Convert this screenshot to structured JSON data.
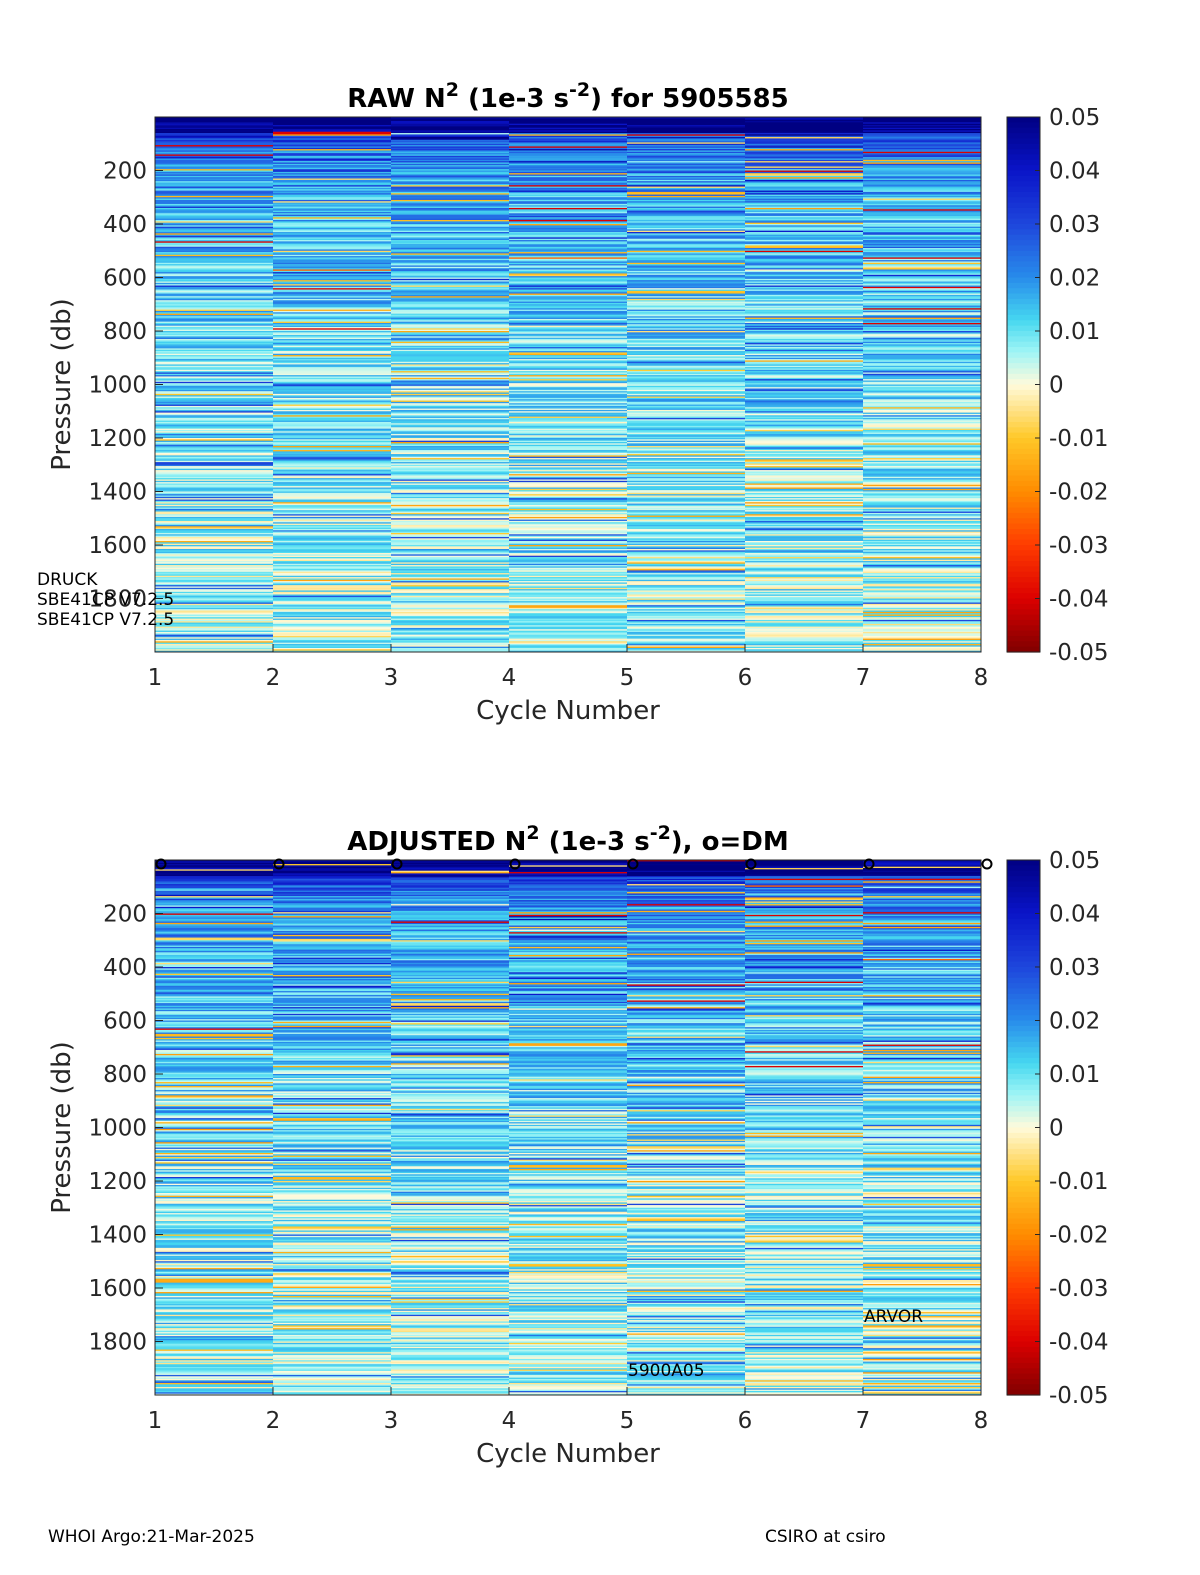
{
  "chart_data": [
    {
      "type": "heatmap",
      "title": "RAW N^2 (1e-3 s^-2) for 5905585",
      "title_parts": {
        "pre": "RAW N",
        "sup1": "2",
        "mid": " (1e-3 s",
        "sup2": "-2",
        "post": ") for 5905585"
      },
      "xlabel": "Cycle Number",
      "ylabel": "Pressure (db)",
      "x_ticks": [
        "1",
        "2",
        "3",
        "4",
        "5",
        "6",
        "7",
        "8"
      ],
      "y_ticks": [
        "200",
        "400",
        "600",
        "800",
        "1000",
        "1200",
        "1400",
        "1600",
        "1800"
      ],
      "xlim": [
        1,
        8
      ],
      "ylim": [
        0,
        2000
      ],
      "y_reversed": true,
      "colorbar": {
        "min": -0.05,
        "max": 0.05,
        "ticks": [
          "0.05",
          "0.04",
          "0.03",
          "0.02",
          "0.01",
          "0",
          "-0.01",
          "-0.02",
          "-0.03",
          "-0.04",
          "-0.05"
        ],
        "colormap": "red-yellow-white-cyan-blue"
      },
      "annotations": [
        "DRUCK",
        "SBE41CP V7.2.5",
        "SBE41CP V7.2.5"
      ],
      "dm_markers": []
    },
    {
      "type": "heatmap",
      "title": "ADJUSTED N^2 (1e-3 s^-2), o=DM",
      "title_parts": {
        "pre": "ADJUSTED N",
        "sup1": "2",
        "mid": " (1e-3 s",
        "sup2": "-2",
        "post": "), o=DM"
      },
      "xlabel": "Cycle Number",
      "ylabel": "Pressure (db)",
      "x_ticks": [
        "1",
        "2",
        "3",
        "4",
        "5",
        "6",
        "7",
        "8"
      ],
      "y_ticks": [
        "200",
        "400",
        "600",
        "800",
        "1000",
        "1200",
        "1400",
        "1600",
        "1800"
      ],
      "xlim": [
        1,
        8
      ],
      "ylim": [
        0,
        2000
      ],
      "y_reversed": true,
      "colorbar": {
        "min": -0.05,
        "max": 0.05,
        "ticks": [
          "0.05",
          "0.04",
          "0.03",
          "0.02",
          "0.01",
          "0",
          "-0.01",
          "-0.02",
          "-0.03",
          "-0.04",
          "-0.05"
        ],
        "colormap": "red-yellow-white-cyan-blue"
      },
      "annotations": [
        "5900A05",
        "ARVOR"
      ],
      "dm_markers": [
        1,
        2,
        3,
        4,
        5,
        6,
        7,
        8
      ],
      "dm_marker_symbol": "o"
    }
  ],
  "footer": {
    "left": "WHOI Argo:21-Mar-2025",
    "right": "CSIRO at csiro"
  }
}
